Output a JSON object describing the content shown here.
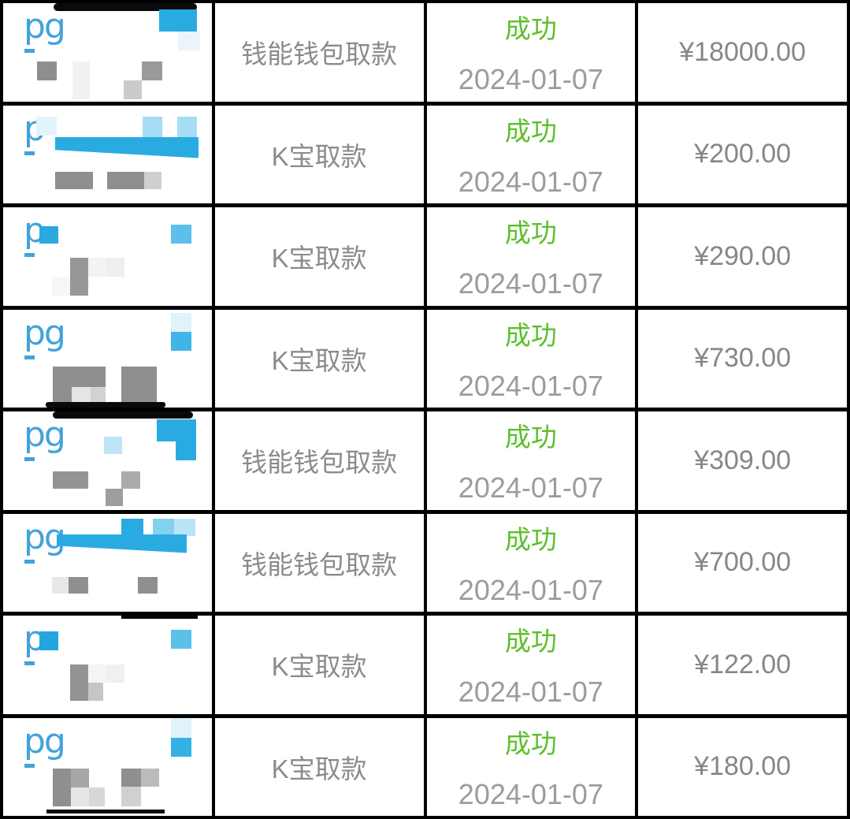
{
  "colors": {
    "grid_border": "#000000",
    "cell_background": "#ffffff",
    "status_green": "#5CC02C",
    "date_gray": "#9C9C9C",
    "type_gray": "#8B8B8B",
    "amount_gray": "#878787",
    "logo_blue": "#42A3DA",
    "accent_blue": "#29ABE2"
  },
  "table": {
    "rows": [
      {
        "type": "钱能钱包取款",
        "status": "成功",
        "date": "2024-01-07",
        "amount": "¥18000.00",
        "thumb": {
          "logo": "pg",
          "blocks": [
            [
              64,
              0,
              182,
              10,
              "#0a0a0a",
              {
                "r": 6
              }
            ],
            [
              198,
              8,
              48,
              28,
              "#29ABE2"
            ],
            [
              222,
              36,
              28,
              24,
              "#EAF5FB"
            ],
            [
              27,
              58,
              13,
              5,
              "#42A3DA"
            ],
            [
              43,
              74,
              25,
              24,
              "#8E8E8E"
            ],
            [
              88,
              74,
              22,
              48,
              "#F1F1F1"
            ],
            [
              176,
              74,
              26,
              24,
              "#9A9A9A"
            ],
            [
              153,
              98,
              23,
              24,
              "#CBCBCB"
            ]
          ]
        }
      },
      {
        "type": "K宝取款",
        "status": "成功",
        "date": "2024-01-07",
        "amount": "¥200.00",
        "thumb": {
          "logo": "p",
          "blocks": [
            [
              42,
              14,
              26,
              24,
              "#E2F3FB"
            ],
            [
              177,
              14,
              25,
              26,
              "#A6DDF4"
            ],
            [
              221,
              14,
              25,
              26,
              "#A6DDF4"
            ],
            [
              27,
              58,
              13,
              5,
              "#42A3DA"
            ],
            [
              66,
              40,
              182,
              27,
              "#29ABE2",
              {
                "slant": true
              }
            ],
            [
              66,
              84,
              48,
              22,
              "#8F8F8F"
            ],
            [
              132,
              84,
              47,
              22,
              "#8F8F8F"
            ],
            [
              179,
              84,
              22,
              22,
              "#CFCFCF"
            ]
          ]
        }
      },
      {
        "type": "K宝取款",
        "status": "成功",
        "date": "2024-01-07",
        "amount": "¥290.00",
        "thumb": {
          "logo": "p",
          "blocks": [
            [
              46,
              24,
              24,
              22,
              "#29A9E0"
            ],
            [
              213,
              22,
              26,
              24,
              "#5BC0EA"
            ],
            [
              27,
              58,
              13,
              5,
              "#42A3DA"
            ],
            [
              85,
              64,
              23,
              48,
              "#979797"
            ],
            [
              108,
              64,
              23,
              24,
              "#F3F3F3"
            ],
            [
              131,
              64,
              23,
              24,
              "#EFEFEF"
            ],
            [
              62,
              88,
              23,
              24,
              "#F6F6F6"
            ]
          ]
        }
      },
      {
        "type": "K宝取款",
        "status": "成功",
        "date": "2024-01-07",
        "amount": "¥730.00",
        "thumb": {
          "logo": "pg",
          "blocks": [
            [
              213,
              4,
              26,
              24,
              "#E0F2FB"
            ],
            [
              213,
              28,
              26,
              24,
              "#41B5E6"
            ],
            [
              27,
              58,
              13,
              5,
              "#42A3DA"
            ],
            [
              63,
              72,
              67,
              26,
              "#8F8F8F"
            ],
            [
              150,
              72,
              45,
              48,
              "#8F8F8F"
            ],
            [
              63,
              98,
              24,
              22,
              "#8F8F8F"
            ],
            [
              87,
              98,
              24,
              22,
              "#E5E5E5"
            ],
            [
              111,
              98,
              19,
              22,
              "#D2D2D2"
            ],
            [
              54,
              117,
              152,
              7,
              "#0a0a0a",
              {
                "r": 3
              }
            ]
          ]
        }
      },
      {
        "type": "钱能钱包取款",
        "status": "成功",
        "date": "2024-01-07",
        "amount": "¥309.00",
        "thumb": {
          "logo": "pg",
          "blocks": [
            [
              63,
              0,
              178,
              9,
              "#0a0a0a",
              {
                "r": 5
              }
            ],
            [
              128,
              32,
              23,
              22,
              "#BDE4F7"
            ],
            [
              195,
              10,
              50,
              28,
              "#29ABE2"
            ],
            [
              219,
              38,
              26,
              24,
              "#29ABE2"
            ],
            [
              27,
              58,
              13,
              5,
              "#42A3DA"
            ],
            [
              63,
              76,
              45,
              22,
              "#949494"
            ],
            [
              150,
              76,
              24,
              22,
              "#ABABAB"
            ],
            [
              130,
              98,
              22,
              22,
              "#9E9E9E"
            ]
          ]
        }
      },
      {
        "type": "钱能钱包取款",
        "status": "成功",
        "date": "2024-01-07",
        "amount": "¥700.00",
        "thumb": {
          "logo": "pg",
          "blocks": [
            [
              150,
              6,
              28,
              20,
              "#29ABE2"
            ],
            [
              190,
              6,
              27,
              22,
              "#83D1F0"
            ],
            [
              217,
              6,
              27,
              22,
              "#BCE4F7"
            ],
            [
              68,
              26,
              165,
              24,
              "#29ABE2",
              {
                "slant": true
              }
            ],
            [
              27,
              58,
              13,
              5,
              "#42A3DA"
            ],
            [
              62,
              80,
              21,
              21,
              "#E8E8E8"
            ],
            [
              83,
              80,
              25,
              21,
              "#8F8F8F"
            ],
            [
              171,
              80,
              25,
              21,
              "#8F8F8F"
            ]
          ]
        }
      },
      {
        "type": "K宝取款",
        "status": "成功",
        "date": "2024-01-07",
        "amount": "¥122.00",
        "thumb": {
          "logo": "p",
          "blocks": [
            [
              150,
              0,
              97,
              4,
              "#000000"
            ],
            [
              46,
              20,
              24,
              24,
              "#24A5DF"
            ],
            [
              213,
              18,
              26,
              24,
              "#5BC0EA"
            ],
            [
              27,
              58,
              13,
              5,
              "#42A3DA"
            ],
            [
              85,
              62,
              23,
              46,
              "#939393"
            ],
            [
              108,
              62,
              23,
              23,
              "#F5F5F5"
            ],
            [
              131,
              62,
              23,
              23,
              "#F0F0F0"
            ],
            [
              108,
              85,
              19,
              23,
              "#C6C6C6"
            ]
          ]
        }
      },
      {
        "type": "K宝取款",
        "status": "成功",
        "date": "2024-01-07",
        "amount": "¥180.00",
        "thumb": {
          "logo": "pg",
          "blocks": [
            [
              213,
              0,
              26,
              25,
              "#E0F2FB"
            ],
            [
              213,
              25,
              26,
              24,
              "#35B2E4"
            ],
            [
              27,
              58,
              13,
              5,
              "#42A3DA"
            ],
            [
              63,
              64,
              23,
              48,
              "#8F8F8F"
            ],
            [
              86,
              64,
              23,
              24,
              "#A6A6A6"
            ],
            [
              150,
              64,
              25,
              23,
              "#8F8F8F"
            ],
            [
              175,
              64,
              23,
              23,
              "#BBBBBB"
            ],
            [
              86,
              88,
              23,
              24,
              "#E6E6E6"
            ],
            [
              109,
              88,
              20,
              24,
              "#D8D8D8"
            ],
            [
              150,
              87,
              25,
              25,
              "#D0D0D0"
            ],
            [
              55,
              116,
              150,
              5,
              "#0e0e0e"
            ]
          ]
        }
      }
    ]
  }
}
